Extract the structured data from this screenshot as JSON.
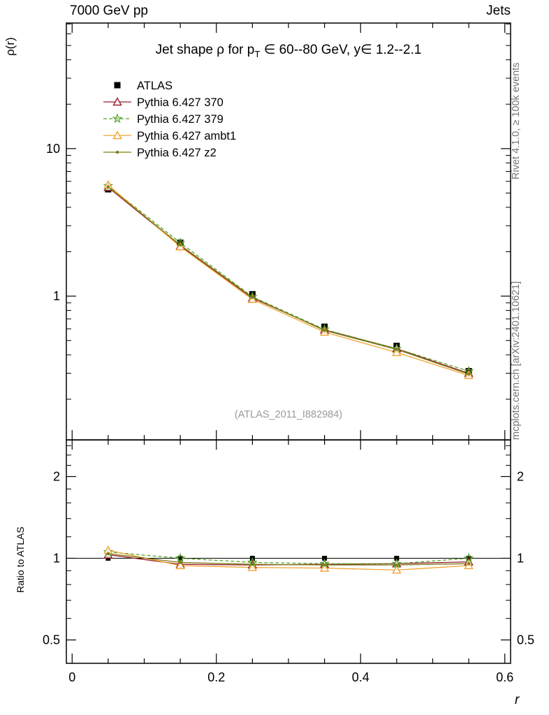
{
  "page": {
    "top_left": "7000 GeV pp",
    "top_right": "Jets",
    "right_margin_top": "Rivet 4.1.0, ≥ 100k events",
    "right_margin_bottom": "mcplots.cern.ch [arXiv:2401.10621]",
    "colors": {
      "frame": "#000000",
      "watermark": "#9a9a9a",
      "side_text": "#757575"
    }
  },
  "chart_data": [
    {
      "type": "line",
      "title": "Jet shape ρ for p_T ∈ 60--80 GeV, y∈ 1.2--2.1",
      "title_parts": {
        "prefix": "Jet shape ρ for p",
        "sub": "T",
        "suffix": " ∈ 60--80 GeV, y∈ 1.2--2.1"
      },
      "ylabel": "ρ(r)",
      "xlabel": "",
      "yscale": "log",
      "xlim": [
        0,
        0.6
      ],
      "ylim": [
        0.106,
        71
      ],
      "xticks": [
        0,
        0.2,
        0.4,
        0.6
      ],
      "yticks": [
        1,
        10
      ],
      "grid": false,
      "legend_position": "upper left",
      "watermark": "(ATLAS_2011_I882984)",
      "x": [
        0.05,
        0.15,
        0.25,
        0.35,
        0.45,
        0.55
      ],
      "series": [
        {
          "name": "ATLAS",
          "color": "#000000",
          "marker": "square",
          "line": "none",
          "values": [
            5.3,
            2.3,
            1.03,
            0.62,
            0.46,
            0.31
          ]
        },
        {
          "name": "Pythia 6.427 370",
          "color": "#9a1f2e",
          "marker": "triangle-open",
          "line": "solid",
          "values": [
            5.46,
            2.19,
            0.97,
            0.59,
            0.44,
            0.3
          ]
        },
        {
          "name": "Pythia 6.427 379",
          "color": "#58a42a",
          "marker": "star-open",
          "line": "dashed",
          "values": [
            5.59,
            2.3,
            0.99,
            0.595,
            0.44,
            0.31
          ]
        },
        {
          "name": "Pythia 6.427 ambt1",
          "color": "#f0a432",
          "marker": "triangle-open",
          "line": "solid",
          "values": [
            5.67,
            2.16,
            0.95,
            0.57,
            0.415,
            0.29
          ]
        },
        {
          "name": "Pythia 6.427 z2",
          "color": "#7c7c16",
          "marker": "dot",
          "line": "solid",
          "values": [
            5.51,
            2.22,
            0.98,
            0.585,
            0.435,
            0.296
          ]
        }
      ]
    },
    {
      "type": "line",
      "title": "",
      "ylabel": "Ratio to ATLAS",
      "xlabel": "r",
      "yscale": "log",
      "xlim": [
        0,
        0.6
      ],
      "ylim": [
        0.41,
        2.73
      ],
      "xticks": [
        0,
        0.2,
        0.4,
        0.6
      ],
      "yticks": [
        0.5,
        1,
        2
      ],
      "yminors": [
        0.6,
        0.7,
        0.8,
        0.9,
        1.2,
        1.4,
        1.6,
        1.8,
        2.2,
        2.4,
        2.6
      ],
      "reference_line": 1,
      "x": [
        0.05,
        0.15,
        0.25,
        0.35,
        0.45,
        0.55
      ],
      "series": [
        {
          "name": "ATLAS",
          "color": "#000000",
          "marker": "square",
          "line": "none",
          "values": [
            1.0,
            1.0,
            1.0,
            1.0,
            1.0,
            1.0
          ]
        },
        {
          "name": "Pythia 6.427 370",
          "color": "#9a1f2e",
          "marker": "triangle-open",
          "line": "solid",
          "values": [
            1.03,
            0.95,
            0.945,
            0.95,
            0.955,
            0.97
          ]
        },
        {
          "name": "Pythia 6.427 379",
          "color": "#58a42a",
          "marker": "star-open",
          "line": "dashed",
          "values": [
            1.055,
            1.0,
            0.965,
            0.955,
            0.955,
            1.0
          ]
        },
        {
          "name": "Pythia 6.427 ambt1",
          "color": "#f0a432",
          "marker": "triangle-open",
          "line": "solid",
          "values": [
            1.07,
            0.94,
            0.925,
            0.92,
            0.905,
            0.94
          ]
        },
        {
          "name": "Pythia 6.427 z2",
          "color": "#7c7c16",
          "marker": "dot",
          "line": "solid",
          "values": [
            1.04,
            0.965,
            0.95,
            0.945,
            0.945,
            0.955
          ]
        }
      ]
    }
  ]
}
